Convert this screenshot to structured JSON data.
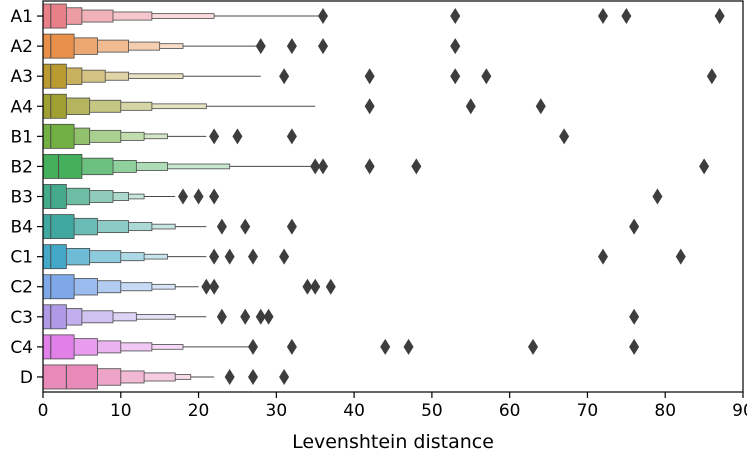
{
  "chart_data": {
    "type": "boxen",
    "orientation": "horizontal",
    "title": "",
    "xlabel": "Levenshtein distance",
    "ylabel": "",
    "xlim": [
      0,
      90
    ],
    "xticks": [
      0,
      10,
      20,
      30,
      40,
      50,
      60,
      70,
      80,
      90
    ],
    "grid": false,
    "categories": [
      "A1",
      "A2",
      "A3",
      "A4",
      "B1",
      "B2",
      "B3",
      "B4",
      "C1",
      "C2",
      "C3",
      "C4",
      "D"
    ],
    "series": [
      {
        "category": "A1",
        "color": "#e8808a",
        "median": 1,
        "levels": [
          [
            0,
            3
          ],
          [
            0,
            5
          ],
          [
            0,
            9
          ],
          [
            0,
            14
          ],
          [
            0,
            22
          ]
        ],
        "whisker": 36,
        "outliers": [
          36,
          53,
          72,
          75,
          87
        ]
      },
      {
        "category": "A2",
        "color": "#e8904a",
        "median": 1,
        "levels": [
          [
            0,
            4
          ],
          [
            0,
            7
          ],
          [
            0,
            11
          ],
          [
            0,
            15
          ],
          [
            0,
            18
          ]
        ],
        "whisker": 28,
        "outliers": [
          28,
          32,
          36,
          53
        ]
      },
      {
        "category": "A3",
        "color": "#b99b32",
        "median": 1,
        "levels": [
          [
            0,
            3
          ],
          [
            0,
            5
          ],
          [
            0,
            8
          ],
          [
            0,
            11
          ],
          [
            0,
            18
          ]
        ],
        "whisker": 28,
        "outliers": [
          31,
          42,
          53,
          57,
          86
        ]
      },
      {
        "category": "A4",
        "color": "#a0a032",
        "median": 1,
        "levels": [
          [
            0,
            3
          ],
          [
            0,
            6
          ],
          [
            0,
            10
          ],
          [
            0,
            14
          ],
          [
            0,
            21
          ]
        ],
        "whisker": 35,
        "outliers": [
          42,
          55,
          64
        ]
      },
      {
        "category": "B1",
        "color": "#72b044",
        "median": 1,
        "levels": [
          [
            0,
            4
          ],
          [
            0,
            6
          ],
          [
            0,
            10
          ],
          [
            0,
            13
          ],
          [
            0,
            16
          ]
        ],
        "whisker": 21,
        "outliers": [
          22,
          25,
          32,
          67
        ]
      },
      {
        "category": "B2",
        "color": "#44b05c",
        "median": 2,
        "levels": [
          [
            0,
            5
          ],
          [
            0,
            9
          ],
          [
            0,
            12
          ],
          [
            0,
            16
          ],
          [
            0,
            24
          ]
        ],
        "whisker": 35,
        "outliers": [
          35,
          36,
          42,
          48,
          85
        ]
      },
      {
        "category": "B3",
        "color": "#44aa8a",
        "median": 1,
        "levels": [
          [
            0,
            3
          ],
          [
            0,
            6
          ],
          [
            0,
            9
          ],
          [
            0,
            11
          ],
          [
            0,
            13
          ]
        ],
        "whisker": 17,
        "outliers": [
          18,
          20,
          22,
          79
        ]
      },
      {
        "category": "B4",
        "color": "#40a8a0",
        "median": 1,
        "levels": [
          [
            0,
            4
          ],
          [
            0,
            7
          ],
          [
            0,
            11
          ],
          [
            0,
            14
          ],
          [
            0,
            17
          ]
        ],
        "whisker": 21,
        "outliers": [
          23,
          26,
          32,
          76
        ]
      },
      {
        "category": "C1",
        "color": "#44a8c8",
        "median": 1,
        "levels": [
          [
            0,
            3
          ],
          [
            0,
            6
          ],
          [
            0,
            10
          ],
          [
            0,
            13
          ],
          [
            0,
            16
          ]
        ],
        "whisker": 21,
        "outliers": [
          22,
          24,
          27,
          31,
          72,
          82
        ]
      },
      {
        "category": "C2",
        "color": "#7ea8e8",
        "median": 1,
        "levels": [
          [
            0,
            4
          ],
          [
            0,
            7
          ],
          [
            0,
            10
          ],
          [
            0,
            14
          ],
          [
            0,
            17
          ]
        ],
        "whisker": 20,
        "outliers": [
          21,
          22,
          34,
          35,
          37
        ]
      },
      {
        "category": "C3",
        "color": "#b09ae8",
        "median": 1,
        "levels": [
          [
            0,
            3
          ],
          [
            0,
            5
          ],
          [
            0,
            9
          ],
          [
            0,
            12
          ],
          [
            0,
            17
          ]
        ],
        "whisker": 21,
        "outliers": [
          23,
          26,
          28,
          29,
          76
        ]
      },
      {
        "category": "C4",
        "color": "#e080e8",
        "median": 1,
        "levels": [
          [
            0,
            4
          ],
          [
            0,
            7
          ],
          [
            0,
            10
          ],
          [
            0,
            14
          ],
          [
            0,
            18
          ]
        ],
        "whisker": 27,
        "outliers": [
          27,
          32,
          44,
          47,
          63,
          76
        ]
      },
      {
        "category": "D",
        "color": "#e88ab8",
        "median": 3,
        "levels": [
          [
            0,
            7
          ],
          [
            0,
            10
          ],
          [
            0,
            13
          ],
          [
            0,
            17
          ],
          [
            0,
            19
          ]
        ],
        "whisker": 22,
        "outliers": [
          24,
          27,
          31
        ]
      }
    ]
  }
}
